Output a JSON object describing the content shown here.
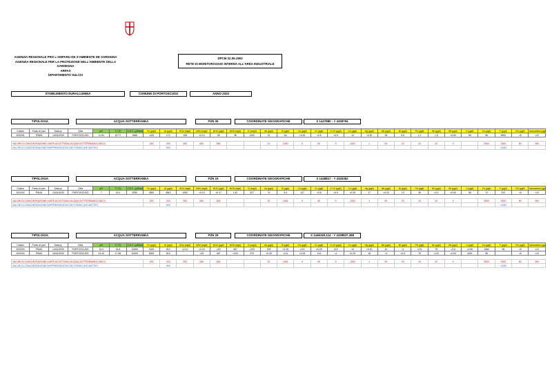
{
  "header": {
    "agency": [
      "AGENZIA REGIONALE PRO L'AMPARU DE S'AMBIENTE DE SARDIGNA",
      "AGENZIA REGIONALE PER LA PROTEZIONE DELL'AMBIENTE DELLA SARDEGNA",
      "ARPAS",
      "DIPARTIMENTO SULCIS"
    ],
    "title": [
      "DPCM 22.06.1993",
      "RETE DI MONITORAGGIO INTERNA ALL'AREA INDUSTRIALE"
    ],
    "info": [
      "STABILIMENTO EURALLUMINA",
      "COMUNE DI PORTOSCUSO",
      "ANNO 2020"
    ]
  },
  "columns": [
    "Codice",
    "Punto di prel.",
    "Data pr.",
    "Città",
    "pH",
    "T (°C)",
    "C.E.C. (µS/cm)",
    "Fe (µg/l)",
    "Al (µg/l)",
    "SO4 (mg/l)",
    "NH4 (mg/l)",
    "NO2 (µg/l)",
    "NO3 (mg/l)",
    "Cl (mg/l)",
    "As (µg/l)",
    "B (µg/l)",
    "Cd (µg/l)",
    "Cr (µg/l)",
    "Cr VI (µg/l)",
    "Cu (µg/l)",
    "Hg (µg/l)",
    "Mn (µg/l)",
    "Ni (µg/l)",
    "Pb (µg/l)",
    "Se (µg/l)",
    "Sb (µg/l)",
    "V (µg/l)",
    "Zn (µg/l)",
    "F (µg/l)",
    "CN (µg/l)",
    "Idrocarburi (µg/l)"
  ],
  "sections": [
    {
      "tipologia_label": "TIPOLOGIA",
      "tipologia": "ACQUA SOTTERRANEA",
      "pzn": "PZN 06",
      "coord_label": "COORDINATE GEOGRAFICHE",
      "coord": "X 1447880 - Y 4339794",
      "rows": [
        [
          "2020/01",
          "PIN06",
          "14/01/2020",
          "PORTOSCUSO",
          "11.53",
          "18.77",
          "1565",
          "<100",
          "172",
          "108",
          "<0.10",
          "28",
          "38",
          "1100",
          "10",
          "111",
          "<0.25",
          "<0.5",
          "<0.5",
          "<5",
          "<0.20",
          "35",
          "5.8",
          "1.2",
          "1.8",
          "<0.50",
          "55",
          "58",
          "5900",
          "<5",
          "<10"
        ]
      ],
      "limit": {
        "label": "VALORI DI CONCENTRAZIONE LIMITE ACCETTABILI ACQUA SOTTERRANEA (TAB.2)",
        "values": [
          "200",
          "200",
          "250",
          "500",
          "500",
          null,
          null,
          "10",
          "1000",
          "5",
          "50",
          "5",
          "1000",
          "1",
          "50",
          "20",
          "10",
          "10",
          "5",
          null,
          "3000",
          "1500",
          "50",
          "350"
        ]
      },
      "fondo": {
        "label": "VALORI DI CONCENTRAZIONE RAPPRESENTATIVI DEL FONDO (IVE MATTEI)",
        "values": [
          null,
          "690",
          null,
          null,
          null,
          null,
          null,
          null,
          null,
          null,
          null,
          null,
          null,
          null,
          null,
          null,
          null,
          null,
          null,
          null,
          null,
          "<1000",
          null,
          null
        ]
      }
    },
    {
      "tipologia_label": "TIPOLOGIA",
      "tipologia": "ACQUA SOTTERRANEA",
      "pzn": "PZN 16",
      "coord_label": "COORDINATE GEOGRAFICHE",
      "coord": "X 1448817 - Y 4340352",
      "rows": [
        [
          "2020/02",
          "PIN16",
          "14/01/2020",
          "PORTOSCUSO",
          "7",
          "19.4",
          "2990",
          "2800",
          "4810",
          "1050",
          "<0.10",
          "<0.17",
          "1.42",
          "327",
          "73",
          "5.4",
          "147",
          "<0.5",
          "<0.5",
          "<0.25",
          "17",
          "<0.20",
          "13",
          "35",
          "<0.1",
          "<0.50",
          "55",
          "72",
          "913",
          "<5",
          "<10"
        ]
      ],
      "limit": {
        "label": "VALORI DI CONCENTRAZIONE LIMITE ACCETTABILI ACQUA SOTTERRANEA (TAB.2)",
        "values": [
          "200",
          "200",
          "250",
          "500",
          "500",
          null,
          null,
          "10",
          "1000",
          "5",
          "50",
          "5",
          "1000",
          "1",
          "50",
          "20",
          "10",
          "10",
          "5",
          null,
          "3000",
          "1500",
          "50",
          "350"
        ]
      },
      "fondo": {
        "label": "VALORI DI CONCENTRAZIONE RAPPRESENTATIVI DEL FONDO (IVE MATTEI)",
        "values": [
          null,
          "690",
          null,
          null,
          null,
          null,
          null,
          null,
          null,
          null,
          null,
          null,
          null,
          null,
          null,
          null,
          null,
          null,
          null,
          null,
          null,
          "<1000",
          null,
          null
        ]
      }
    },
    {
      "tipologia_label": "TIPOLOGIA",
      "tipologia": "ACQUA SOTTERRANEA",
      "pzn": "PZN 26",
      "coord_label": "COORDINATE GEOGRAFICHE",
      "coord": "X 1448190,114 - Y 4339837,388",
      "rows": [
        [
          "2020/03",
          "PIN26",
          "14/01/2020",
          "PORTOSCUSO",
          "10.4",
          "18.6",
          "10050",
          "1520",
          "913",
          "<0.10",
          "<0.20",
          "<20",
          "487",
          "<220",
          "378",
          "<0.25",
          "<0.5",
          "<0.25",
          "213",
          "<5",
          "<0.20",
          "10",
          "<1",
          "<0.5",
          "79",
          "<3.6",
          "<0.50",
          "1660",
          "98",
          "<5",
          "<10"
        ],
        [
          "2020/04",
          "PIN26",
          "15/01/2020",
          "PORTOSCUSO",
          "10.43",
          "17.55",
          "10000",
          "5000",
          "513",
          null,
          "<20",
          "467",
          "<220",
          "370",
          "<0.25",
          "<0.5",
          "<0.25",
          "214",
          "<1",
          "<0.20",
          "18",
          "<1",
          "<0.5",
          "78",
          "<3.6",
          "<0.50",
          "1601",
          "96",
          null,
          "<5",
          "<10"
        ]
      ],
      "limit": {
        "label": "VALORI DI CONCENTRAZIONE LIMITE ACCETTABILI ACQUA SOTTERRANEA (TAB.2)",
        "values": [
          "200",
          "200",
          "250",
          "500",
          "500",
          null,
          null,
          "10",
          "1000",
          "5",
          "50",
          "5",
          "1000",
          "1",
          "50",
          "20",
          "10",
          "10",
          "5",
          null,
          "3000",
          "1500",
          "50",
          "350"
        ]
      },
      "fondo": {
        "label": "VALORI DI CONCENTRAZIONE RAPPRESENTATIVI DEL FONDO (IVE MATTEI)",
        "values": [
          null,
          "690",
          null,
          null,
          null,
          null,
          null,
          null,
          null,
          null,
          null,
          null,
          null,
          null,
          null,
          null,
          null,
          null,
          null,
          null,
          null,
          "<1000",
          null,
          null
        ]
      }
    }
  ]
}
